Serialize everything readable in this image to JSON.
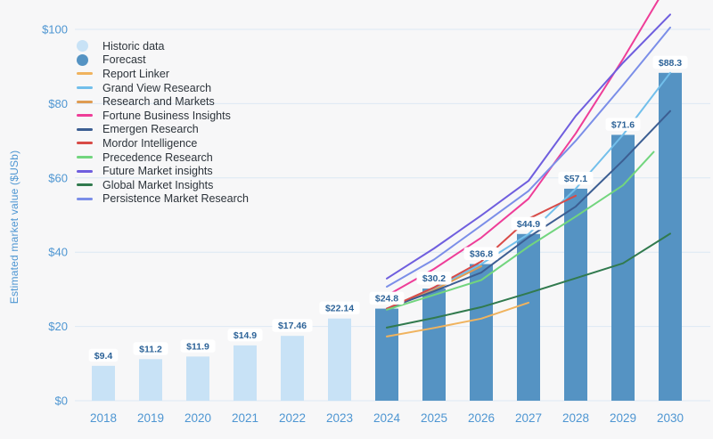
{
  "chart_data": {
    "type": "bar+line",
    "ylabel": "Estimated market value ($USb)",
    "ylim": [
      0,
      107
    ],
    "grid": true,
    "legend_position": "top-left",
    "colors": {
      "background": "#f7f7f8",
      "gridline": "#dce8f4",
      "tick_text": "#4e96d2",
      "bar_label_text": "#2d6398",
      "bar_label_chip": "#ffffff",
      "historic_bar": "#c8e2f6",
      "forecast_bar": "#5593c3"
    },
    "yticks": [
      {
        "value": 0,
        "label": "$0"
      },
      {
        "value": 20,
        "label": "$20"
      },
      {
        "value": 40,
        "label": "$40"
      },
      {
        "value": 60,
        "label": "$60"
      },
      {
        "value": 80,
        "label": "$80"
      },
      {
        "value": 100,
        "label": "$100"
      }
    ],
    "categories": [
      "2018",
      "2019",
      "2020",
      "2021",
      "2022",
      "2023",
      "2024",
      "2025",
      "2026",
      "2027",
      "2028",
      "2029",
      "2030"
    ],
    "bars": [
      {
        "year": 2018,
        "value": 9.4,
        "label": "$9.4",
        "segment": "historic"
      },
      {
        "year": 2019,
        "value": 11.2,
        "label": "$11.2",
        "segment": "historic"
      },
      {
        "year": 2020,
        "value": 11.9,
        "label": "$11.9",
        "segment": "historic"
      },
      {
        "year": 2021,
        "value": 14.9,
        "label": "$14.9",
        "segment": "historic"
      },
      {
        "year": 2022,
        "value": 17.46,
        "label": "$17.46",
        "segment": "historic"
      },
      {
        "year": 2023,
        "value": 22.14,
        "label": "$22.14",
        "segment": "historic"
      },
      {
        "year": 2024,
        "value": 24.8,
        "label": "$24.8",
        "segment": "forecast"
      },
      {
        "year": 2025,
        "value": 30.2,
        "label": "$30.2",
        "segment": "forecast"
      },
      {
        "year": 2026,
        "value": 36.8,
        "label": "$36.8",
        "segment": "forecast"
      },
      {
        "year": 2027,
        "value": 44.9,
        "label": "$44.9",
        "segment": "forecast"
      },
      {
        "year": 2028,
        "value": 57.1,
        "label": "$57.1",
        "segment": "forecast"
      },
      {
        "year": 2029,
        "value": 71.6,
        "label": "$71.6",
        "segment": "forecast"
      },
      {
        "year": 2030,
        "value": 88.3,
        "label": "$88.3",
        "segment": "forecast"
      }
    ],
    "series": [
      {
        "name": "Report Linker",
        "color": "#f0b35e",
        "points": [
          [
            2024,
            17.3
          ],
          [
            2025,
            19.6
          ],
          [
            2026,
            22.1
          ],
          [
            2027,
            26.4
          ]
        ]
      },
      {
        "name": "Grand View Research",
        "color": "#72bfeb",
        "points": [
          [
            2024,
            24.8
          ],
          [
            2025,
            30.2
          ],
          [
            2026,
            36.8
          ],
          [
            2027,
            44.9
          ],
          [
            2028,
            57.1
          ],
          [
            2029,
            71.6
          ],
          [
            2030,
            88.3
          ]
        ]
      },
      {
        "name": "Research and Markets",
        "color": "#df9c52",
        "points": [
          [
            2024,
            24.6
          ],
          [
            2025,
            29.8
          ],
          [
            2026,
            36.2
          ]
        ]
      },
      {
        "name": "Fortune Business Insights",
        "color": "#ee3d98",
        "points": [
          [
            2024,
            28.3
          ],
          [
            2025,
            35.5
          ],
          [
            2026,
            43.9
          ],
          [
            2027,
            54.4
          ],
          [
            2028,
            72
          ],
          [
            2029,
            92
          ],
          [
            2029.75,
            108
          ]
        ]
      },
      {
        "name": "Emergen Research",
        "color": "#3c5e92",
        "points": [
          [
            2024,
            24.8
          ],
          [
            2025,
            29.5
          ],
          [
            2026,
            34.5
          ],
          [
            2027,
            44
          ],
          [
            2028,
            52.3
          ],
          [
            2029,
            64.7
          ],
          [
            2030,
            78
          ]
        ]
      },
      {
        "name": "Mordor Intelligence",
        "color": "#d84b47",
        "points": [
          [
            2024,
            24.8
          ],
          [
            2025,
            30.5
          ],
          [
            2026,
            37.5
          ],
          [
            2027,
            49
          ],
          [
            2028,
            55.2
          ]
        ]
      },
      {
        "name": "Precedence Research",
        "color": "#72d57e",
        "points": [
          [
            2024,
            24.5
          ],
          [
            2025,
            28.5
          ],
          [
            2026,
            32.5
          ],
          [
            2027,
            41.5
          ],
          [
            2028,
            49.6
          ],
          [
            2029,
            58
          ],
          [
            2029.65,
            67
          ]
        ]
      },
      {
        "name": "Future Market insights",
        "color": "#6f5ede",
        "points": [
          [
            2024,
            32.9
          ],
          [
            2025,
            41
          ],
          [
            2026,
            49.9
          ],
          [
            2027,
            59.2
          ],
          [
            2028,
            76.7
          ],
          [
            2029,
            91
          ],
          [
            2030,
            104
          ]
        ]
      },
      {
        "name": "Global Market Insights",
        "color": "#317a4e",
        "points": [
          [
            2024,
            19.7
          ],
          [
            2025,
            22.3
          ],
          [
            2026,
            25.2
          ],
          [
            2027,
            29
          ],
          [
            2028,
            33
          ],
          [
            2029,
            37
          ],
          [
            2030,
            45
          ]
        ]
      },
      {
        "name": "Persistence Market Research",
        "color": "#7b8ee8",
        "points": [
          [
            2024,
            30.7
          ],
          [
            2025,
            38
          ],
          [
            2026,
            47.2
          ],
          [
            2027,
            56.5
          ],
          [
            2028,
            70
          ],
          [
            2029,
            85
          ],
          [
            2030,
            100.5
          ]
        ]
      }
    ],
    "legend": [
      {
        "label": "Historic data",
        "marker": "circle",
        "color": "#c8e2f6"
      },
      {
        "label": "Forecast",
        "marker": "circle",
        "color": "#5593c3"
      },
      {
        "label": "Report Linker",
        "marker": "line",
        "color": "#f0b35e"
      },
      {
        "label": "Grand View Research",
        "marker": "line",
        "color": "#72bfeb"
      },
      {
        "label": "Research and Markets",
        "marker": "line",
        "color": "#df9c52"
      },
      {
        "label": "Fortune Business Insights",
        "marker": "line",
        "color": "#ee3d98"
      },
      {
        "label": "Emergen Research",
        "marker": "line",
        "color": "#3c5e92"
      },
      {
        "label": "Mordor Intelligence",
        "marker": "line",
        "color": "#d84b47"
      },
      {
        "label": "Precedence Research",
        "marker": "line",
        "color": "#72d57e"
      },
      {
        "label": "Future Market insights",
        "marker": "line",
        "color": "#6f5ede"
      },
      {
        "label": "Global Market Insights",
        "marker": "line",
        "color": "#317a4e"
      },
      {
        "label": "Persistence Market Research",
        "marker": "line",
        "color": "#7b8ee8"
      }
    ]
  }
}
